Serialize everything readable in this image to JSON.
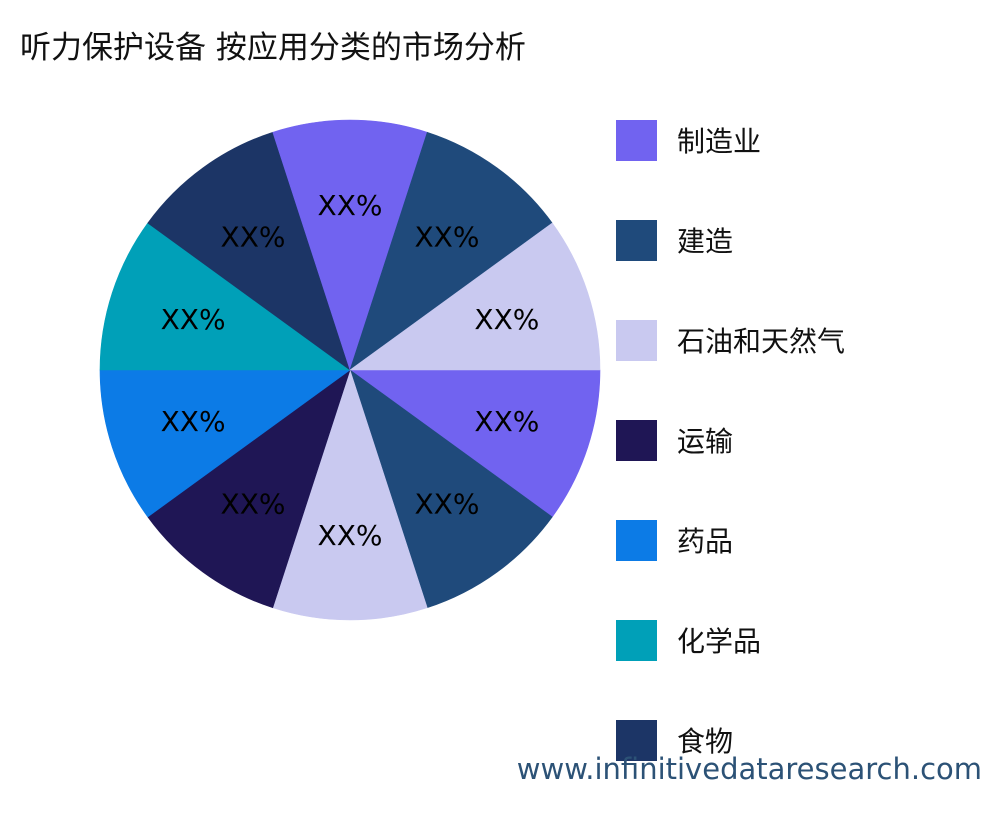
{
  "title": "听力保护设备 按应用分类的市场分析",
  "watermark": "www.infinitivedataresearch.com",
  "chart_data": {
    "type": "pie",
    "title": "听力保护设备 按应用分类的市场分析",
    "legend_position": "right",
    "start_angle_deg": 0,
    "direction": "clockwise",
    "categories": [
      "制造业",
      "建造",
      "石油和天然气",
      "运输",
      "药品",
      "化学品",
      "食物"
    ],
    "colors": [
      "#7163f0",
      "#1f4a7b",
      "#c9c9f0",
      "#1f1655",
      "#0c7be6",
      "#00a0b8",
      "#1c3566"
    ],
    "slices": [
      {
        "category": "制造业",
        "value": 10,
        "label": "XX%"
      },
      {
        "category": "建造",
        "value": 10,
        "label": "XX%"
      },
      {
        "category": "石油和天然气",
        "value": 10,
        "label": "XX%"
      },
      {
        "category": "运输",
        "value": 10,
        "label": "XX%"
      },
      {
        "category": "药品",
        "value": 10,
        "label": "XX%"
      },
      {
        "category": "化学品",
        "value": 10,
        "label": "XX%"
      },
      {
        "category": "食物",
        "value": 10,
        "label": "XX%"
      },
      {
        "category": "制造业",
        "value": 10,
        "label": "XX%"
      },
      {
        "category": "建造",
        "value": 10,
        "label": "XX%"
      },
      {
        "category": "石油和天然气",
        "value": 10,
        "label": "XX%"
      }
    ]
  }
}
